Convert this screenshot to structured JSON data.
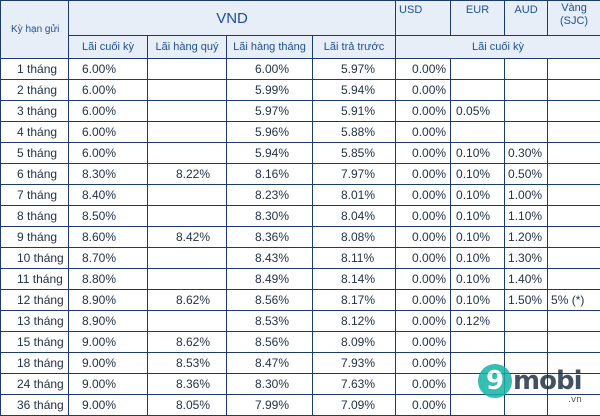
{
  "header": {
    "term_label": "Kỳ hạn gửi",
    "vnd_label": "VND",
    "usd_label": "USD",
    "eur_label": "EUR",
    "aud_label": "AUD",
    "gold_label": "Vàng (SJC)",
    "vnd_cols": [
      "Lãi cuối kỳ",
      "Lãi hàng quý",
      "Lãi hàng tháng",
      "Lãi trả trước"
    ],
    "foreign_sub": "Lãi cuối kỳ"
  },
  "rows": [
    {
      "term": "1 tháng",
      "end": "6.00%",
      "quarterly": "",
      "monthly": "6.00%",
      "upfront": "5.97%",
      "usd": "0.00%",
      "eur": "",
      "aud": "",
      "gold": ""
    },
    {
      "term": "2 tháng",
      "end": "6.00%",
      "quarterly": "",
      "monthly": "5.99%",
      "upfront": "5.94%",
      "usd": "0.00%",
      "eur": "",
      "aud": "",
      "gold": ""
    },
    {
      "term": "3 tháng",
      "end": "6.00%",
      "quarterly": "",
      "monthly": "5.97%",
      "upfront": "5.91%",
      "usd": "0.00%",
      "eur": "0.05%",
      "aud": "",
      "gold": ""
    },
    {
      "term": "4 tháng",
      "end": "6.00%",
      "quarterly": "",
      "monthly": "5.96%",
      "upfront": "5.88%",
      "usd": "0.00%",
      "eur": "",
      "aud": "",
      "gold": ""
    },
    {
      "term": "5 tháng",
      "end": "6.00%",
      "quarterly": "",
      "monthly": "5.94%",
      "upfront": "5.85%",
      "usd": "0.00%",
      "eur": "0.10%",
      "aud": "0.30%",
      "gold": ""
    },
    {
      "term": "6 tháng",
      "end": "8.30%",
      "quarterly": "8.22%",
      "monthly": "8.16%",
      "upfront": "7.97%",
      "usd": "0.00%",
      "eur": "0.10%",
      "aud": "0.50%",
      "gold": ""
    },
    {
      "term": "7 tháng",
      "end": "8.40%",
      "quarterly": "",
      "monthly": "8.23%",
      "upfront": "8.01%",
      "usd": "0.00%",
      "eur": "0.10%",
      "aud": "1.00%",
      "gold": ""
    },
    {
      "term": "8 tháng",
      "end": "8.50%",
      "quarterly": "",
      "monthly": "8.30%",
      "upfront": "8.04%",
      "usd": "0.00%",
      "eur": "0.10%",
      "aud": "1.10%",
      "gold": ""
    },
    {
      "term": "9 tháng",
      "end": "8.60%",
      "quarterly": "8.42%",
      "monthly": "8.36%",
      "upfront": "8.08%",
      "usd": "0.00%",
      "eur": "0.10%",
      "aud": "1.20%",
      "gold": ""
    },
    {
      "term": "10 tháng",
      "end": "8.70%",
      "quarterly": "",
      "monthly": "8.43%",
      "upfront": "8.11%",
      "usd": "0.00%",
      "eur": "0.10%",
      "aud": "1.30%",
      "gold": ""
    },
    {
      "term": "11 tháng",
      "end": "8.80%",
      "quarterly": "",
      "monthly": "8.49%",
      "upfront": "8.14%",
      "usd": "0.00%",
      "eur": "0.10%",
      "aud": "1.40%",
      "gold": ""
    },
    {
      "term": "12 tháng",
      "end": "8.90%",
      "quarterly": "8.62%",
      "monthly": "8.56%",
      "upfront": "8.17%",
      "usd": "0.00%",
      "eur": "0.10%",
      "aud": "1.50%",
      "gold": "5% (*)"
    },
    {
      "term": "13 tháng",
      "end": "8.90%",
      "quarterly": "",
      "monthly": "8.53%",
      "upfront": "8.12%",
      "usd": "0.00%",
      "eur": "0.12%",
      "aud": "",
      "gold": ""
    },
    {
      "term": "15 tháng",
      "end": "9.00%",
      "quarterly": "8.62%",
      "monthly": "8.56%",
      "upfront": "8.09%",
      "usd": "0.00%",
      "eur": "",
      "aud": "",
      "gold": ""
    },
    {
      "term": "18 tháng",
      "end": "9.00%",
      "quarterly": "8.53%",
      "monthly": "8.47%",
      "upfront": "7.93%",
      "usd": "0.00%",
      "eur": "",
      "aud": "",
      "gold": ""
    },
    {
      "term": "24 tháng",
      "end": "9.00%",
      "quarterly": "8.36%",
      "monthly": "8.30%",
      "upfront": "7.63%",
      "usd": "0.00%",
      "eur": "",
      "aud": "",
      "gold": ""
    },
    {
      "term": "36  tháng",
      "end": "9.00%",
      "quarterly": "8.05%",
      "monthly": "7.99%",
      "upfront": "7.09%",
      "usd": "0.00%",
      "eur": "",
      "aud": "",
      "gold": ""
    }
  ],
  "watermark": {
    "digit": "9",
    "brand": "mobi",
    "tld": ".vn"
  }
}
